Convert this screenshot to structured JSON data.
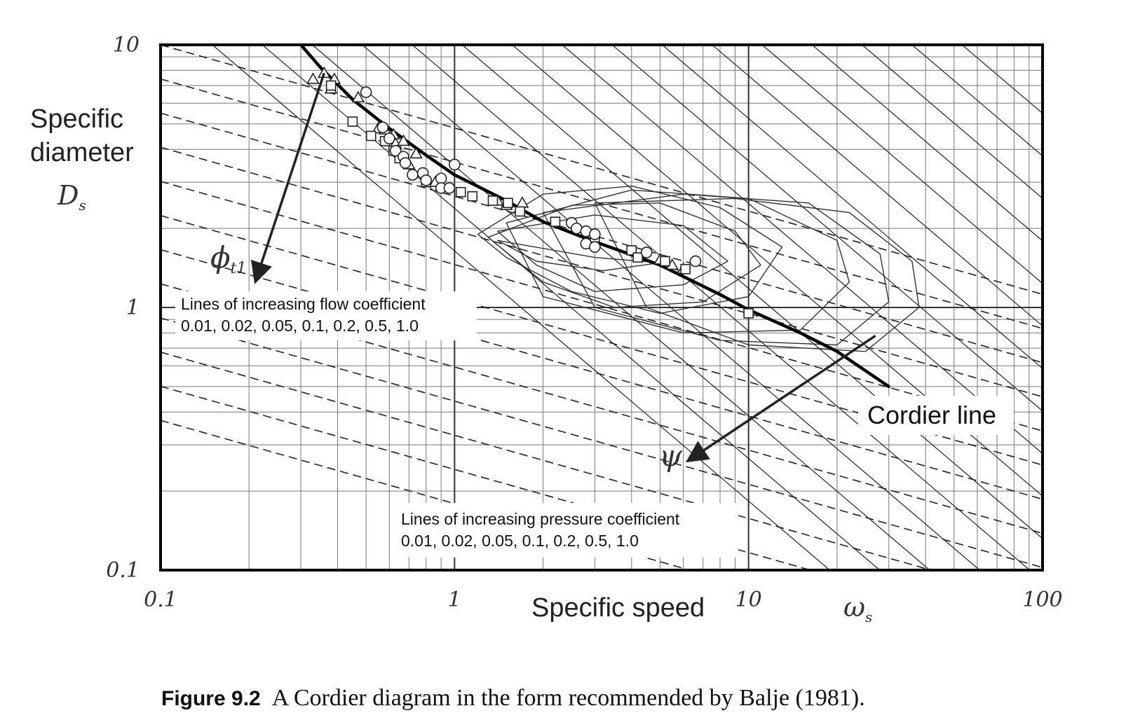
{
  "chart_data": {
    "type": "scatter",
    "x_scale": "log",
    "y_scale": "log",
    "xlim": [
      0.1,
      100
    ],
    "ylim": [
      0.1,
      10
    ],
    "x_ticks": [
      {
        "value": 0.1,
        "label": "0.1"
      },
      {
        "value": 1,
        "label": "1"
      },
      {
        "value": 10,
        "label": "10"
      },
      {
        "value": 100,
        "label": "100"
      }
    ],
    "y_ticks": [
      {
        "value": 0.1,
        "label": "0.1"
      },
      {
        "value": 1,
        "label": "1"
      },
      {
        "value": 10,
        "label": "10"
      }
    ],
    "xlabel": "Specific speed",
    "xlabel_symbol": {
      "main": "ω",
      "sub": "s"
    },
    "ylabel_lines": [
      "Specific",
      "diameter"
    ],
    "ylabel_symbol": {
      "main": "D",
      "sub": "s"
    },
    "grid": true,
    "flow_lines": {
      "annotation_lines": [
        "Lines of increasing flow coefficient",
        "0.01, 0.02, 0.05, 0.1, 0.2, 0.5, 1.0"
      ],
      "symbol": {
        "main": "ϕ",
        "sub": "t1"
      },
      "arrow_from": [
        0.36,
        7.8
      ],
      "arrow_to": [
        0.21,
        1.25
      ]
    },
    "pressure_lines": {
      "annotation_lines": [
        "Lines of increasing pressure coefficient",
        "0.01, 0.02, 0.05, 0.1, 0.2, 0.5, 1.0"
      ],
      "symbol": "ψ",
      "arrow_from": [
        27,
        0.78
      ],
      "arrow_to": [
        6.2,
        0.26
      ]
    },
    "cordier_line": {
      "label": "Cordier line",
      "points": [
        [
          0.3,
          10
        ],
        [
          0.35,
          8.2
        ],
        [
          0.45,
          6.2
        ],
        [
          0.6,
          4.8
        ],
        [
          0.8,
          3.8
        ],
        [
          1.0,
          3.2
        ],
        [
          1.5,
          2.55
        ],
        [
          2.0,
          2.12
        ],
        [
          3.0,
          1.78
        ],
        [
          5.0,
          1.45
        ],
        [
          8.0,
          1.12
        ],
        [
          10.0,
          0.98
        ],
        [
          15.0,
          0.8
        ],
        [
          20.0,
          0.68
        ],
        [
          30.0,
          0.5
        ]
      ]
    },
    "efficiency_contours": [
      {
        "points": [
          [
            1.2,
            1.9
          ],
          [
            2.0,
            2.7
          ],
          [
            4.0,
            2.9
          ],
          [
            8.0,
            2.4
          ],
          [
            13.0,
            1.7
          ],
          [
            10.0,
            1.1
          ],
          [
            5.0,
            0.95
          ],
          [
            2.5,
            1.15
          ],
          [
            1.5,
            1.55
          ],
          [
            1.2,
            1.9
          ]
        ]
      },
      {
        "points": [
          [
            1.3,
            1.85
          ],
          [
            2.5,
            2.45
          ],
          [
            5.0,
            2.5
          ],
          [
            9.0,
            1.95
          ],
          [
            11.0,
            1.45
          ],
          [
            7.0,
            1.05
          ],
          [
            3.5,
            1.0
          ],
          [
            2.0,
            1.25
          ],
          [
            1.3,
            1.85
          ]
        ]
      },
      {
        "points": [
          [
            1.4,
            1.95
          ],
          [
            3.0,
            2.25
          ],
          [
            6.0,
            2.05
          ],
          [
            8.5,
            1.5
          ],
          [
            6.0,
            1.22
          ],
          [
            3.0,
            1.15
          ],
          [
            1.9,
            1.45
          ],
          [
            1.4,
            1.95
          ]
        ]
      },
      {
        "points": [
          [
            1.5,
            2.1
          ],
          [
            4.0,
            2.8
          ],
          [
            10.0,
            2.6
          ],
          [
            20.0,
            1.8
          ],
          [
            22.0,
            1.25
          ],
          [
            15.0,
            0.82
          ],
          [
            6.0,
            0.8
          ],
          [
            2.0,
            1.1
          ],
          [
            1.5,
            2.1
          ]
        ]
      },
      {
        "points": [
          [
            2.0,
            2.3
          ],
          [
            6.0,
            2.7
          ],
          [
            16.0,
            2.5
          ],
          [
            28.0,
            1.6
          ],
          [
            30.0,
            1.05
          ],
          [
            20.0,
            0.72
          ],
          [
            8.0,
            0.75
          ],
          [
            3.0,
            1.0
          ],
          [
            2.0,
            2.3
          ]
        ]
      },
      {
        "points": [
          [
            3.0,
            2.5
          ],
          [
            9.0,
            2.6
          ],
          [
            22.0,
            2.3
          ],
          [
            36.0,
            1.5
          ],
          [
            38.0,
            1.0
          ],
          [
            25.0,
            0.68
          ],
          [
            10.0,
            0.72
          ],
          [
            4.5,
            1.0
          ],
          [
            3.0,
            2.5
          ]
        ]
      },
      {
        "points": [
          [
            1.4,
            1.8
          ],
          [
            3.0,
            1.55
          ],
          [
            5.0,
            1.48
          ],
          [
            3.2,
            1.38
          ],
          [
            1.9,
            1.5
          ],
          [
            1.4,
            1.8
          ]
        ]
      }
    ],
    "series": [
      {
        "marker": "triangle",
        "points": [
          [
            0.33,
            7.4
          ],
          [
            0.36,
            7.8
          ],
          [
            0.38,
            6.8
          ],
          [
            0.39,
            7.4
          ],
          [
            0.47,
            6.3
          ],
          [
            0.55,
            4.8
          ],
          [
            0.58,
            4.75
          ],
          [
            0.62,
            4.55
          ],
          [
            0.63,
            4.2
          ],
          [
            0.67,
            4.3
          ],
          [
            0.7,
            3.5
          ],
          [
            0.74,
            3.85
          ],
          [
            0.86,
            3.0
          ],
          [
            1.4,
            2.55
          ],
          [
            1.5,
            2.45
          ],
          [
            1.7,
            2.5
          ],
          [
            5.0,
            1.52
          ],
          [
            5.5,
            1.45
          ],
          [
            6.0,
            1.4
          ]
        ]
      },
      {
        "marker": "square",
        "points": [
          [
            0.38,
            7.0
          ],
          [
            0.45,
            5.1
          ],
          [
            0.52,
            4.5
          ],
          [
            0.58,
            4.3
          ],
          [
            0.62,
            3.95
          ],
          [
            0.65,
            3.7
          ],
          [
            0.8,
            3.0
          ],
          [
            1.05,
            2.75
          ],
          [
            1.15,
            2.65
          ],
          [
            1.35,
            2.55
          ],
          [
            1.52,
            2.5
          ],
          [
            1.67,
            2.32
          ],
          [
            2.2,
            2.12
          ],
          [
            3.0,
            1.85
          ],
          [
            4.0,
            1.65
          ],
          [
            4.2,
            1.55
          ],
          [
            5.2,
            1.5
          ],
          [
            6.1,
            1.4
          ],
          [
            10.0,
            0.95
          ]
        ]
      },
      {
        "marker": "circle",
        "points": [
          [
            0.5,
            6.6
          ],
          [
            0.57,
            4.85
          ],
          [
            0.6,
            4.4
          ],
          [
            0.63,
            3.95
          ],
          [
            0.67,
            3.75
          ],
          [
            0.68,
            3.55
          ],
          [
            0.72,
            3.2
          ],
          [
            0.78,
            3.25
          ],
          [
            0.8,
            3.05
          ],
          [
            0.9,
            3.1
          ],
          [
            1.0,
            3.5
          ],
          [
            0.9,
            2.85
          ],
          [
            0.96,
            2.85
          ],
          [
            2.5,
            2.1
          ],
          [
            2.6,
            2.0
          ],
          [
            2.8,
            1.95
          ],
          [
            3.0,
            1.9
          ],
          [
            2.8,
            1.75
          ],
          [
            3.0,
            1.7
          ],
          [
            4.5,
            1.62
          ],
          [
            6.6,
            1.5
          ]
        ]
      }
    ]
  },
  "caption": {
    "label": "Figure 9.2",
    "text": "A Cordier diagram in the form recommended by Balje (1981)."
  }
}
